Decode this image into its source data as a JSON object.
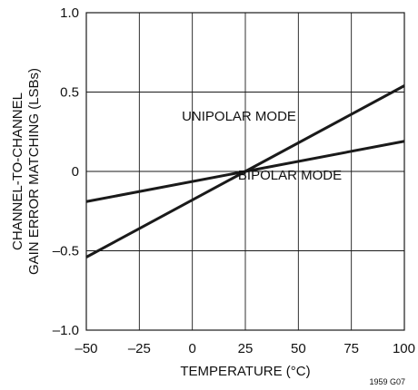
{
  "chart_data": {
    "type": "line",
    "title": "",
    "xlabel": "TEMPERATURE (°C)",
    "ylabel_lines": [
      "CHANNEL-TO-CHANNEL",
      "GAIN ERROR MATCHING (LSBs)"
    ],
    "xlim": [
      -50,
      100
    ],
    "ylim": [
      -1.0,
      1.0
    ],
    "x_ticks": [
      -50,
      -25,
      0,
      25,
      50,
      75,
      100
    ],
    "x_tick_labels": [
      "–50",
      "–25",
      "0",
      "25",
      "50",
      "75",
      "100"
    ],
    "y_ticks": [
      1.0,
      0.5,
      0,
      -0.5,
      -1.0
    ],
    "y_tick_labels": [
      "1.0",
      "0.5",
      "0",
      "–0.5",
      "–1.0"
    ],
    "grid": true,
    "series": [
      {
        "name": "UNIPOLAR MODE",
        "x": [
          -50,
          100
        ],
        "y": [
          -0.54,
          0.54
        ]
      },
      {
        "name": "BIPOLAR MODE",
        "x": [
          -50,
          100
        ],
        "y": [
          -0.19,
          0.19
        ]
      }
    ],
    "annotations": [
      {
        "text": "UNIPOLAR MODE",
        "x": 22,
        "y": 0.32
      },
      {
        "text": "BIPOLAR MODE",
        "x": 46,
        "y": -0.05
      }
    ],
    "figure_id": "1959 G07",
    "line_color": "#1a1a1a",
    "grid_color": "#1a1a1a"
  }
}
